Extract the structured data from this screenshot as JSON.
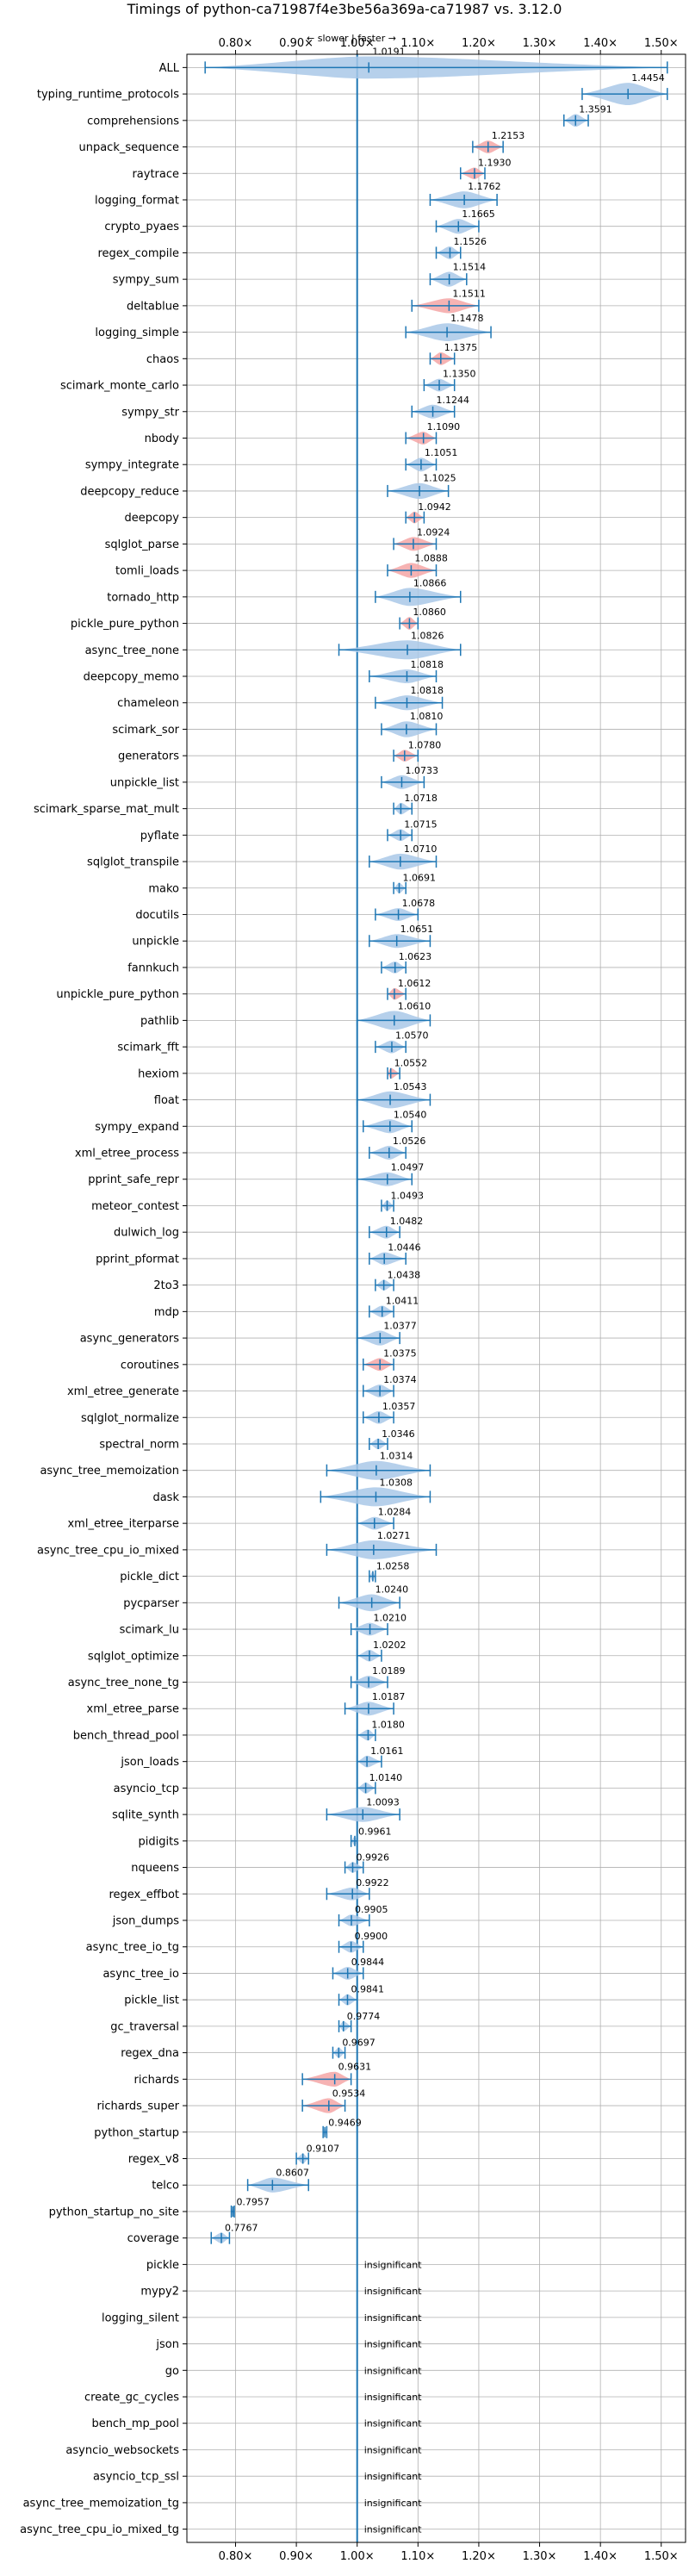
{
  "chart_data": {
    "type": "violin",
    "title": "Timings of python-ca71987f4e3be56a369a-ca71987 vs. 3.12.0",
    "subtitle": "← slower | faster →",
    "xlim": [
      0.72,
      1.54
    ],
    "xticks": [
      0.8,
      0.9,
      1.0,
      1.1,
      1.2,
      1.3,
      1.4,
      1.5
    ],
    "xtick_labels": [
      "0.80×",
      "0.90×",
      "1.00×",
      "1.10×",
      "1.20×",
      "1.30×",
      "1.40×",
      "1.50×"
    ],
    "reference_line": 1.0,
    "grid": true,
    "insignificant_label": "insignificant",
    "benchmarks": [
      {
        "name": "ALL",
        "value": 1.0191,
        "label": "1.0191",
        "min": 0.75,
        "max": 1.51,
        "spread": 0.3,
        "highlight": false
      },
      {
        "name": "typing_runtime_protocols",
        "value": 1.4454,
        "label": "1.4454",
        "min": 1.37,
        "max": 1.51,
        "spread": 0.08,
        "highlight": false
      },
      {
        "name": "comprehensions",
        "value": 1.3591,
        "label": "1.3591",
        "min": 1.34,
        "max": 1.38,
        "spread": 0.02,
        "highlight": false
      },
      {
        "name": "unpack_sequence",
        "value": 1.2153,
        "label": "1.2153",
        "min": 1.19,
        "max": 1.24,
        "spread": 0.02,
        "highlight": true
      },
      {
        "name": "raytrace",
        "value": 1.193,
        "label": "1.1930",
        "min": 1.17,
        "max": 1.21,
        "spread": 0.015,
        "highlight": true
      },
      {
        "name": "logging_format",
        "value": 1.1762,
        "label": "1.1762",
        "min": 1.12,
        "max": 1.23,
        "spread": 0.04,
        "highlight": false
      },
      {
        "name": "crypto_pyaes",
        "value": 1.1665,
        "label": "1.1665",
        "min": 1.13,
        "max": 1.2,
        "spread": 0.03,
        "highlight": false
      },
      {
        "name": "regex_compile",
        "value": 1.1526,
        "label": "1.1526",
        "min": 1.13,
        "max": 1.17,
        "spread": 0.02,
        "highlight": false
      },
      {
        "name": "sympy_sum",
        "value": 1.1514,
        "label": "1.1514",
        "min": 1.12,
        "max": 1.18,
        "spread": 0.03,
        "highlight": false
      },
      {
        "name": "deltablue",
        "value": 1.1511,
        "label": "1.1511",
        "min": 1.09,
        "max": 1.2,
        "spread": 0.03,
        "highlight": true
      },
      {
        "name": "logging_simple",
        "value": 1.1478,
        "label": "1.1478",
        "min": 1.08,
        "max": 1.22,
        "spread": 0.045,
        "highlight": false
      },
      {
        "name": "chaos",
        "value": 1.1375,
        "label": "1.1375",
        "min": 1.12,
        "max": 1.16,
        "spread": 0.02,
        "highlight": true
      },
      {
        "name": "scimark_monte_carlo",
        "value": 1.135,
        "label": "1.1350",
        "min": 1.11,
        "max": 1.16,
        "spread": 0.02,
        "highlight": false
      },
      {
        "name": "sympy_str",
        "value": 1.1244,
        "label": "1.1244",
        "min": 1.09,
        "max": 1.16,
        "spread": 0.025,
        "highlight": false
      },
      {
        "name": "nbody",
        "value": 1.109,
        "label": "1.1090",
        "min": 1.08,
        "max": 1.13,
        "spread": 0.02,
        "highlight": true
      },
      {
        "name": "sympy_integrate",
        "value": 1.1051,
        "label": "1.1051",
        "min": 1.08,
        "max": 1.13,
        "spread": 0.025,
        "highlight": false
      },
      {
        "name": "deepcopy_reduce",
        "value": 1.1025,
        "label": "1.1025",
        "min": 1.05,
        "max": 1.15,
        "spread": 0.035,
        "highlight": false
      },
      {
        "name": "deepcopy",
        "value": 1.0942,
        "label": "1.0942",
        "min": 1.08,
        "max": 1.11,
        "spread": 0.015,
        "highlight": true
      },
      {
        "name": "sqlglot_parse",
        "value": 1.0924,
        "label": "1.0924",
        "min": 1.06,
        "max": 1.13,
        "spread": 0.025,
        "highlight": true
      },
      {
        "name": "tomli_loads",
        "value": 1.0888,
        "label": "1.0888",
        "min": 1.05,
        "max": 1.13,
        "spread": 0.03,
        "highlight": true
      },
      {
        "name": "tornado_http",
        "value": 1.0866,
        "label": "1.0866",
        "min": 1.03,
        "max": 1.17,
        "spread": 0.045,
        "highlight": false
      },
      {
        "name": "pickle_pure_python",
        "value": 1.086,
        "label": "1.0860",
        "min": 1.07,
        "max": 1.1,
        "spread": 0.02,
        "highlight": true
      },
      {
        "name": "async_tree_none",
        "value": 1.0826,
        "label": "1.0826",
        "min": 0.97,
        "max": 1.17,
        "spread": 0.05,
        "highlight": false
      },
      {
        "name": "deepcopy_memo",
        "value": 1.0818,
        "label": "1.0818",
        "min": 1.02,
        "max": 1.13,
        "spread": 0.025,
        "highlight": false
      },
      {
        "name": "chameleon",
        "value": 1.0818,
        "label": "1.0818",
        "min": 1.03,
        "max": 1.14,
        "spread": 0.03,
        "highlight": false
      },
      {
        "name": "scimark_sor",
        "value": 1.081,
        "label": "1.0810",
        "min": 1.04,
        "max": 1.13,
        "spread": 0.035,
        "highlight": false
      },
      {
        "name": "generators",
        "value": 1.078,
        "label": "1.0780",
        "min": 1.06,
        "max": 1.1,
        "spread": 0.015,
        "highlight": true
      },
      {
        "name": "unpickle_list",
        "value": 1.0733,
        "label": "1.0733",
        "min": 1.04,
        "max": 1.11,
        "spread": 0.025,
        "highlight": false
      },
      {
        "name": "scimark_sparse_mat_mult",
        "value": 1.0718,
        "label": "1.0718",
        "min": 1.06,
        "max": 1.09,
        "spread": 0.015,
        "highlight": false
      },
      {
        "name": "pyflate",
        "value": 1.0715,
        "label": "1.0715",
        "min": 1.05,
        "max": 1.09,
        "spread": 0.015,
        "highlight": false
      },
      {
        "name": "sqlglot_transpile",
        "value": 1.071,
        "label": "1.0710",
        "min": 1.02,
        "max": 1.13,
        "spread": 0.035,
        "highlight": false
      },
      {
        "name": "mako",
        "value": 1.0691,
        "label": "1.0691",
        "min": 1.06,
        "max": 1.08,
        "spread": 0.01,
        "highlight": false
      },
      {
        "name": "docutils",
        "value": 1.0678,
        "label": "1.0678",
        "min": 1.03,
        "max": 1.1,
        "spread": 0.02,
        "highlight": false
      },
      {
        "name": "unpickle",
        "value": 1.0651,
        "label": "1.0651",
        "min": 1.02,
        "max": 1.12,
        "spread": 0.025,
        "highlight": false
      },
      {
        "name": "fannkuch",
        "value": 1.0623,
        "label": "1.0623",
        "min": 1.04,
        "max": 1.08,
        "spread": 0.015,
        "highlight": false
      },
      {
        "name": "unpickle_pure_python",
        "value": 1.0612,
        "label": "1.0612",
        "min": 1.05,
        "max": 1.08,
        "spread": 0.015,
        "highlight": true
      },
      {
        "name": "pathlib",
        "value": 1.061,
        "label": "1.0610",
        "min": 1.0,
        "max": 1.12,
        "spread": 0.05,
        "highlight": false
      },
      {
        "name": "scimark_fft",
        "value": 1.057,
        "label": "1.0570",
        "min": 1.03,
        "max": 1.08,
        "spread": 0.02,
        "highlight": false
      },
      {
        "name": "hexiom",
        "value": 1.0552,
        "label": "1.0552",
        "min": 1.05,
        "max": 1.07,
        "spread": 0.01,
        "highlight": true
      },
      {
        "name": "float",
        "value": 1.0543,
        "label": "1.0543",
        "min": 1.0,
        "max": 1.12,
        "spread": 0.04,
        "highlight": false
      },
      {
        "name": "sympy_expand",
        "value": 1.054,
        "label": "1.0540",
        "min": 1.01,
        "max": 1.09,
        "spread": 0.025,
        "highlight": false
      },
      {
        "name": "xml_etree_process",
        "value": 1.0526,
        "label": "1.0526",
        "min": 1.02,
        "max": 1.08,
        "spread": 0.025,
        "highlight": false
      },
      {
        "name": "pprint_safe_repr",
        "value": 1.0497,
        "label": "1.0497",
        "min": 1.0,
        "max": 1.09,
        "spread": 0.025,
        "highlight": false
      },
      {
        "name": "meteor_contest",
        "value": 1.0493,
        "label": "1.0493",
        "min": 1.04,
        "max": 1.06,
        "spread": 0.01,
        "highlight": false
      },
      {
        "name": "dulwich_log",
        "value": 1.0482,
        "label": "1.0482",
        "min": 1.02,
        "max": 1.07,
        "spread": 0.02,
        "highlight": false
      },
      {
        "name": "pprint_pformat",
        "value": 1.0446,
        "label": "1.0446",
        "min": 1.02,
        "max": 1.08,
        "spread": 0.02,
        "highlight": false
      },
      {
        "name": "2to3",
        "value": 1.0438,
        "label": "1.0438",
        "min": 1.03,
        "max": 1.06,
        "spread": 0.01,
        "highlight": false
      },
      {
        "name": "mdp",
        "value": 1.0411,
        "label": "1.0411",
        "min": 1.02,
        "max": 1.06,
        "spread": 0.015,
        "highlight": false
      },
      {
        "name": "async_generators",
        "value": 1.0377,
        "label": "1.0377",
        "min": 1.0,
        "max": 1.07,
        "spread": 0.03,
        "highlight": false
      },
      {
        "name": "coroutines",
        "value": 1.0375,
        "label": "1.0375",
        "min": 1.01,
        "max": 1.06,
        "spread": 0.02,
        "highlight": true
      },
      {
        "name": "xml_etree_generate",
        "value": 1.0374,
        "label": "1.0374",
        "min": 1.01,
        "max": 1.06,
        "spread": 0.02,
        "highlight": false
      },
      {
        "name": "sqlglot_normalize",
        "value": 1.0357,
        "label": "1.0357",
        "min": 1.01,
        "max": 1.06,
        "spread": 0.02,
        "highlight": false
      },
      {
        "name": "spectral_norm",
        "value": 1.0346,
        "label": "1.0346",
        "min": 1.02,
        "max": 1.05,
        "spread": 0.01,
        "highlight": false
      },
      {
        "name": "async_tree_memoization",
        "value": 1.0314,
        "label": "1.0314",
        "min": 0.95,
        "max": 1.12,
        "spread": 0.05,
        "highlight": false
      },
      {
        "name": "dask",
        "value": 1.0308,
        "label": "1.0308",
        "min": 0.94,
        "max": 1.12,
        "spread": 0.05,
        "highlight": false
      },
      {
        "name": "xml_etree_iterparse",
        "value": 1.0284,
        "label": "1.0284",
        "min": 1.0,
        "max": 1.06,
        "spread": 0.02,
        "highlight": false
      },
      {
        "name": "async_tree_cpu_io_mixed",
        "value": 1.0271,
        "label": "1.0271",
        "min": 0.95,
        "max": 1.13,
        "spread": 0.05,
        "highlight": false
      },
      {
        "name": "pickle_dict",
        "value": 1.0258,
        "label": "1.0258",
        "min": 1.02,
        "max": 1.03,
        "spread": 0.008,
        "highlight": false
      },
      {
        "name": "pycparser",
        "value": 1.024,
        "label": "1.0240",
        "min": 0.97,
        "max": 1.07,
        "spread": 0.04,
        "highlight": false
      },
      {
        "name": "scimark_lu",
        "value": 1.021,
        "label": "1.0210",
        "min": 0.99,
        "max": 1.05,
        "spread": 0.02,
        "highlight": false
      },
      {
        "name": "sqlglot_optimize",
        "value": 1.0202,
        "label": "1.0202",
        "min": 1.0,
        "max": 1.04,
        "spread": 0.015,
        "highlight": false
      },
      {
        "name": "async_tree_none_tg",
        "value": 1.0189,
        "label": "1.0189",
        "min": 0.99,
        "max": 1.05,
        "spread": 0.02,
        "highlight": false
      },
      {
        "name": "xml_etree_parse",
        "value": 1.0187,
        "label": "1.0187",
        "min": 0.98,
        "max": 1.06,
        "spread": 0.025,
        "highlight": false
      },
      {
        "name": "bench_thread_pool",
        "value": 1.018,
        "label": "1.0180",
        "min": 1.0,
        "max": 1.03,
        "spread": 0.012,
        "highlight": false
      },
      {
        "name": "json_loads",
        "value": 1.0161,
        "label": "1.0161",
        "min": 1.0,
        "max": 1.04,
        "spread": 0.015,
        "highlight": false
      },
      {
        "name": "asyncio_tcp",
        "value": 1.014,
        "label": "1.0140",
        "min": 1.0,
        "max": 1.03,
        "spread": 0.012,
        "highlight": false
      },
      {
        "name": "sqlite_synth",
        "value": 1.0093,
        "label": "1.0093",
        "min": 0.95,
        "max": 1.07,
        "spread": 0.03,
        "highlight": false
      },
      {
        "name": "pidigits",
        "value": 0.9961,
        "label": "0.9961",
        "min": 0.99,
        "max": 1.0,
        "spread": 0.004,
        "highlight": false
      },
      {
        "name": "nqueens",
        "value": 0.9926,
        "label": "0.9926",
        "min": 0.98,
        "max": 1.01,
        "spread": 0.01,
        "highlight": false
      },
      {
        "name": "regex_effbot",
        "value": 0.9922,
        "label": "0.9922",
        "min": 0.95,
        "max": 1.02,
        "spread": 0.02,
        "highlight": false
      },
      {
        "name": "json_dumps",
        "value": 0.9905,
        "label": "0.9905",
        "min": 0.97,
        "max": 1.02,
        "spread": 0.015,
        "highlight": false
      },
      {
        "name": "async_tree_io_tg",
        "value": 0.99,
        "label": "0.9900",
        "min": 0.97,
        "max": 1.01,
        "spread": 0.015,
        "highlight": false
      },
      {
        "name": "async_tree_io",
        "value": 0.9844,
        "label": "0.9844",
        "min": 0.96,
        "max": 1.01,
        "spread": 0.02,
        "highlight": false
      },
      {
        "name": "pickle_list",
        "value": 0.9841,
        "label": "0.9841",
        "min": 0.97,
        "max": 1.0,
        "spread": 0.012,
        "highlight": false
      },
      {
        "name": "gc_traversal",
        "value": 0.9774,
        "label": "0.9774",
        "min": 0.97,
        "max": 0.99,
        "spread": 0.008,
        "highlight": false
      },
      {
        "name": "regex_dna",
        "value": 0.9697,
        "label": "0.9697",
        "min": 0.96,
        "max": 0.98,
        "spread": 0.008,
        "highlight": false
      },
      {
        "name": "richards",
        "value": 0.9631,
        "label": "0.9631",
        "min": 0.91,
        "max": 0.99,
        "spread": 0.03,
        "highlight": true
      },
      {
        "name": "richards_super",
        "value": 0.9534,
        "label": "0.9534",
        "min": 0.91,
        "max": 0.98,
        "spread": 0.03,
        "highlight": true
      },
      {
        "name": "python_startup",
        "value": 0.9469,
        "label": "0.9469",
        "min": 0.944,
        "max": 0.95,
        "spread": 0.003,
        "highlight": false
      },
      {
        "name": "regex_v8",
        "value": 0.9107,
        "label": "0.9107",
        "min": 0.9,
        "max": 0.92,
        "spread": 0.008,
        "highlight": false
      },
      {
        "name": "telco",
        "value": 0.8607,
        "label": "0.8607",
        "min": 0.82,
        "max": 0.92,
        "spread": 0.03,
        "highlight": false
      },
      {
        "name": "python_startup_no_site",
        "value": 0.7957,
        "label": "0.7957",
        "min": 0.793,
        "max": 0.798,
        "spread": 0.003,
        "highlight": false
      },
      {
        "name": "coverage",
        "value": 0.7767,
        "label": "0.7767",
        "min": 0.76,
        "max": 0.79,
        "spread": 0.01,
        "highlight": false
      },
      {
        "name": "pickle",
        "value": null,
        "label": "insignificant",
        "insignificant": true
      },
      {
        "name": "mypy2",
        "value": null,
        "label": "insignificant",
        "insignificant": true
      },
      {
        "name": "logging_silent",
        "value": null,
        "label": "insignificant",
        "insignificant": true
      },
      {
        "name": "json",
        "value": null,
        "label": "insignificant",
        "insignificant": true
      },
      {
        "name": "go",
        "value": null,
        "label": "insignificant",
        "insignificant": true
      },
      {
        "name": "create_gc_cycles",
        "value": null,
        "label": "insignificant",
        "insignificant": true
      },
      {
        "name": "bench_mp_pool",
        "value": null,
        "label": "insignificant",
        "insignificant": true
      },
      {
        "name": "asyncio_websockets",
        "value": null,
        "label": "insignificant",
        "insignificant": true
      },
      {
        "name": "asyncio_tcp_ssl",
        "value": null,
        "label": "insignificant",
        "insignificant": true
      },
      {
        "name": "async_tree_memoization_tg",
        "value": null,
        "label": "insignificant",
        "insignificant": true
      },
      {
        "name": "async_tree_cpu_io_mixed_tg",
        "value": null,
        "label": "insignificant",
        "insignificant": true
      }
    ]
  },
  "colors": {
    "violin_blue": "#1f77b4",
    "violin_fill": "#a9c8e8",
    "violin_red_fill": "#f4a6a6",
    "grid": "#b0b0b0",
    "axis": "#000000"
  }
}
